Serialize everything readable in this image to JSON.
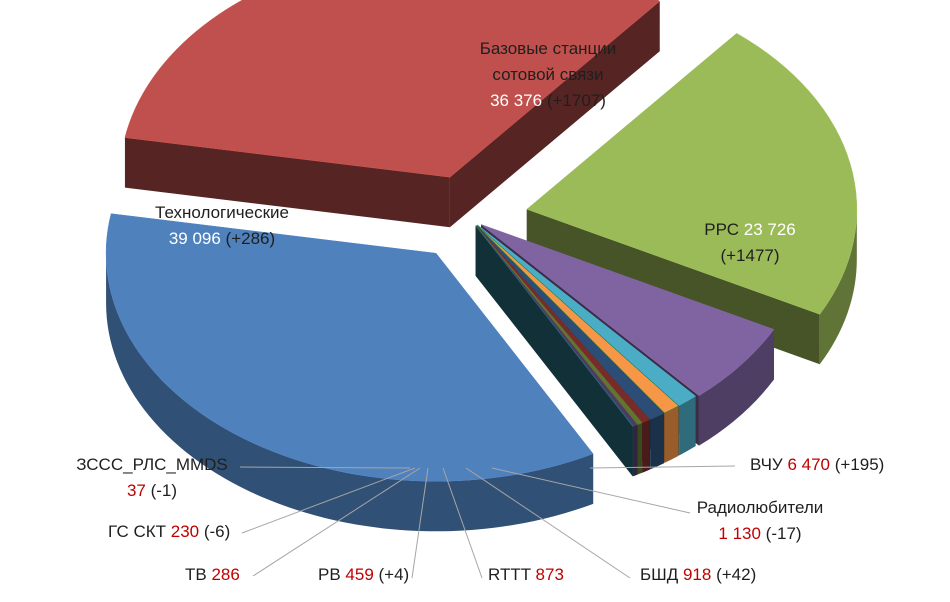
{
  "chart_data": {
    "type": "pie",
    "variant": "3d-exploded",
    "legend": "none",
    "colors": {
      "label_text": "#1f1f1f",
      "value_highlight": "#c00000",
      "value_on_slice": "#ffffff",
      "leader_line": "#a6a6a6"
    },
    "slices": [
      {
        "label": "Базовые станции сотовой связи",
        "value": 36376,
        "value_text": "36 376",
        "delta_text": "(+1707)",
        "color": "#c0504d"
      },
      {
        "label": "РРС",
        "value": 23726,
        "value_text": "23 726",
        "delta_text": "(+1477)",
        "color": "#9bbb59"
      },
      {
        "label": "ВЧУ",
        "value": 6470,
        "value_text": "6 470",
        "delta_text": "(+195)",
        "color": "#8064a2"
      },
      {
        "label": "Радиолюбители",
        "value": 1130,
        "value_text": "1 130",
        "delta_text": "(-17)",
        "color": "#4bacc6"
      },
      {
        "label": "БШД",
        "value": 918,
        "value_text": "918",
        "delta_text": "(+42)",
        "color": "#f79646"
      },
      {
        "label": "RTTT",
        "value": 873,
        "value_text": "873",
        "delta_text": "",
        "color": "#2c4d75"
      },
      {
        "label": "РВ",
        "value": 459,
        "value_text": "459",
        "delta_text": "(+4)",
        "color": "#772c2a"
      },
      {
        "label": "ТВ",
        "value": 286,
        "value_text": "286",
        "delta_text": "",
        "color": "#5f7530"
      },
      {
        "label": "ГС СКТ",
        "value": 230,
        "value_text": "230",
        "delta_text": "(-6)",
        "color": "#4d3b62"
      },
      {
        "label": "ЗССС_РЛС_MMDS",
        "value": 37,
        "value_text": "37",
        "delta_text": "(-1)",
        "color": "#276a7c"
      },
      {
        "label": "Технологические",
        "value": 39096,
        "value_text": "39 096",
        "delta_text": "(+286)",
        "color": "#4f81bd"
      }
    ]
  }
}
